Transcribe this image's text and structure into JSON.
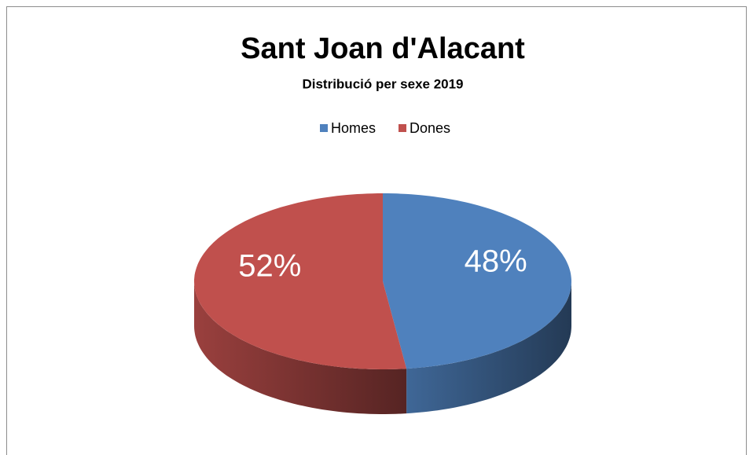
{
  "chart_data": {
    "type": "pie",
    "title": "Sant Joan d'Alacant",
    "subtitle": "Distribució per sexe 2019",
    "categories": [
      "Homes",
      "Dones"
    ],
    "values": [
      48,
      52
    ],
    "value_labels": [
      "48%",
      "52%"
    ],
    "colors": [
      "#4f81bd",
      "#c0504d"
    ],
    "legend": "top"
  }
}
